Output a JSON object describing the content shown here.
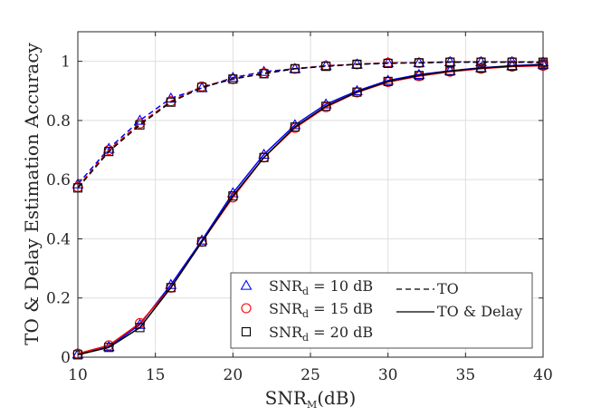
{
  "chart_data": {
    "type": "line",
    "xlabel": "SNR",
    "xlabel_sub": "M",
    "xlabel_unit": "(dB)",
    "ylabel": "TO & Delay Estimation Accuracy",
    "xlim": [
      10,
      40
    ],
    "ylim": [
      0,
      1.1
    ],
    "xticks": [
      10,
      15,
      20,
      25,
      30,
      35,
      40
    ],
    "yticks": [
      0,
      0.2,
      0.4,
      0.6,
      0.8,
      1
    ],
    "ytick_labels": [
      "0",
      "0.2",
      "0.4",
      "0.6",
      "0.8",
      "1"
    ],
    "grid": true,
    "legend_position": "bottom-right",
    "x": [
      10,
      12,
      14,
      16,
      18,
      20,
      22,
      24,
      26,
      28,
      30,
      32,
      34,
      36,
      38,
      40
    ],
    "series": [
      {
        "name": "SNRd = 10 dB, TO",
        "metric": "TO",
        "marker": "triangle",
        "color": "#0000ff",
        "line": "dashed",
        "values": [
          0.585,
          0.705,
          0.8,
          0.875,
          0.91,
          0.945,
          0.965,
          0.975,
          0.985,
          0.99,
          0.995,
          0.995,
          0.998,
          0.998,
          0.998,
          0.998
        ]
      },
      {
        "name": "SNRd = 15 dB, TO",
        "metric": "TO",
        "marker": "circle",
        "color": "#ff0000",
        "line": "dashed",
        "values": [
          0.575,
          0.7,
          0.79,
          0.865,
          0.915,
          0.94,
          0.96,
          0.975,
          0.985,
          0.99,
          0.995,
          0.995,
          0.998,
          0.998,
          0.998,
          0.995
        ]
      },
      {
        "name": "SNRd = 20 dB, TO",
        "metric": "TO",
        "marker": "square",
        "color": "#000000",
        "line": "dashed",
        "values": [
          0.572,
          0.695,
          0.785,
          0.862,
          0.912,
          0.94,
          0.958,
          0.975,
          0.983,
          0.99,
          0.993,
          0.995,
          0.997,
          0.997,
          0.997,
          0.997
        ]
      },
      {
        "name": "SNRd = 10 dB, TO & Delay",
        "metric": "TO & Delay",
        "marker": "triangle",
        "color": "#0000ff",
        "line": "solid",
        "values": [
          0.01,
          0.035,
          0.11,
          0.245,
          0.395,
          0.555,
          0.685,
          0.785,
          0.855,
          0.9,
          0.935,
          0.955,
          0.968,
          0.978,
          0.985,
          0.99
        ]
      },
      {
        "name": "SNRd = 15 dB, TO & Delay",
        "metric": "TO & Delay",
        "marker": "circle",
        "color": "#ff0000",
        "line": "solid",
        "values": [
          0.012,
          0.04,
          0.115,
          0.235,
          0.39,
          0.54,
          0.675,
          0.775,
          0.845,
          0.895,
          0.93,
          0.95,
          0.965,
          0.975,
          0.982,
          0.985
        ]
      },
      {
        "name": "SNRd = 20 dB, TO & Delay",
        "metric": "TO & Delay",
        "marker": "square",
        "color": "#000000",
        "line": "solid",
        "values": [
          0.008,
          0.033,
          0.1,
          0.235,
          0.39,
          0.545,
          0.675,
          0.778,
          0.848,
          0.896,
          0.932,
          0.952,
          0.967,
          0.977,
          0.984,
          0.988
        ]
      }
    ],
    "legend": {
      "markers": [
        {
          "marker": "triangle",
          "color": "#0000ff",
          "base": "SNR",
          "sub": "d",
          "rest": " = 10 dB"
        },
        {
          "marker": "circle",
          "color": "#ff0000",
          "base": "SNR",
          "sub": "d",
          "rest": " = 15 dB"
        },
        {
          "marker": "square",
          "color": "#000000",
          "base": "SNR",
          "sub": "d",
          "rest": " = 20 dB"
        }
      ],
      "lines": [
        {
          "style": "dashed",
          "label": "TO"
        },
        {
          "style": "solid",
          "label": "TO & Delay"
        }
      ]
    }
  }
}
